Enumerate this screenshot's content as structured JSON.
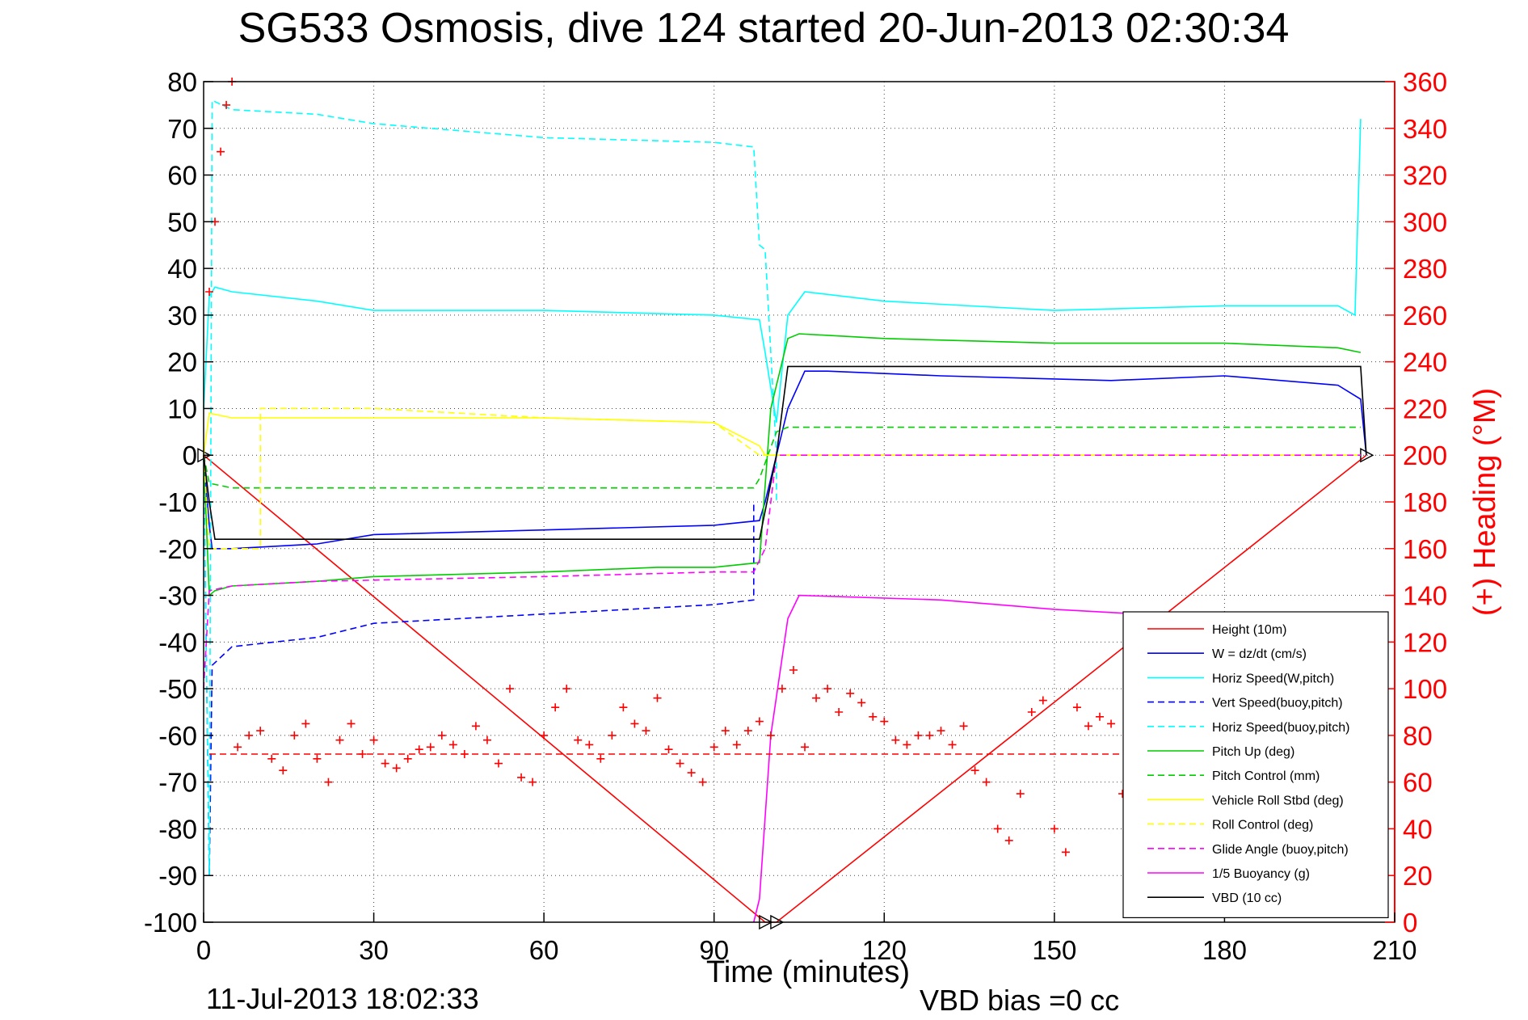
{
  "chart_data": {
    "type": "line",
    "title": "SG533 Osmosis, dive 124 started 20-Jun-2013 02:30:34",
    "xlabel": "Time (minutes)",
    "ylabel_right": "(+) Heading (°M)",
    "xlim": [
      0,
      210
    ],
    "ylim": [
      -100,
      80
    ],
    "ylim_right": [
      0,
      360
    ],
    "x_ticks": [
      0,
      30,
      60,
      90,
      120,
      150,
      180,
      210
    ],
    "y_ticks": [
      80,
      70,
      60,
      50,
      40,
      30,
      20,
      10,
      0,
      -10,
      -20,
      -30,
      -40,
      -50,
      -60,
      -70,
      -80,
      -90,
      -100
    ],
    "y_right_ticks": [
      360,
      340,
      320,
      300,
      280,
      260,
      240,
      220,
      200,
      180,
      160,
      140,
      120,
      100,
      80,
      60,
      40,
      20,
      0
    ],
    "grid": true,
    "legend_position": "bottom-right",
    "footer_left": "11-Jul-2013 18:02:33",
    "footer_right": "VBD bias =0 cc",
    "series": [
      {
        "name": "Height (10m)",
        "color": "#ff0000",
        "style": "solid",
        "marker": "triangle",
        "x": [
          0,
          99,
          101,
          205
        ],
        "y": [
          0,
          -100,
          -100,
          0
        ]
      },
      {
        "name": "W = dz/dt (cm/s)",
        "color": "#0000ff",
        "style": "solid",
        "x": [
          0,
          1,
          1.5,
          5,
          20,
          30,
          60,
          90,
          98,
          99,
          103,
          106,
          110,
          130,
          160,
          180,
          200,
          204,
          205
        ],
        "y": [
          0,
          -15,
          -20,
          -20,
          -19,
          -17,
          -16,
          -15,
          -14,
          -10,
          10,
          18,
          18,
          17,
          16,
          17,
          15,
          12,
          0
        ]
      },
      {
        "name": "Horiz Speed(W,pitch)",
        "color": "#00ffff",
        "style": "solid",
        "x": [
          0,
          1,
          2,
          5,
          20,
          30,
          60,
          90,
          98,
          99,
          101,
          103,
          106,
          120,
          150,
          180,
          200,
          203,
          204
        ],
        "y": [
          10,
          34,
          36,
          35,
          33,
          31,
          31,
          30,
          29,
          22,
          7,
          30,
          35,
          33,
          31,
          32,
          32,
          30,
          72
        ]
      },
      {
        "name": "Vert Speed(buoy,pitch)",
        "color": "#0000ff",
        "style": "dashed",
        "x": [
          0,
          1,
          1.5,
          5,
          20,
          30,
          60,
          90,
          97,
          97
        ],
        "y": [
          0,
          -90,
          -45,
          -41,
          -39,
          -36,
          -34,
          -32,
          -31,
          -10
        ]
      },
      {
        "name": "Horiz Speed(buoy,pitch)",
        "color": "#00ffff",
        "style": "dashed",
        "x": [
          0,
          1,
          1.5,
          5,
          20,
          30,
          60,
          90,
          97,
          98,
          99,
          101,
          101
        ],
        "y": [
          0,
          -90,
          76,
          74,
          73,
          71,
          68,
          67,
          66,
          45,
          44,
          0,
          -10
        ]
      },
      {
        "name": "Pitch Up (deg)",
        "color": "#00cc00",
        "style": "solid",
        "x": [
          0,
          1,
          2,
          5,
          20,
          30,
          60,
          80,
          90,
          98,
          100,
          103,
          105,
          120,
          150,
          180,
          200,
          204
        ],
        "y": [
          0,
          -30,
          -29,
          -28,
          -27,
          -26,
          -25,
          -24,
          -24,
          -23,
          10,
          25,
          26,
          25,
          24,
          24,
          23,
          22
        ]
      },
      {
        "name": "Pitch Control (mm)",
        "color": "#00cc00",
        "style": "dashed",
        "x": [
          0,
          1,
          5,
          20,
          60,
          90,
          97,
          98,
          101,
          103,
          120,
          150,
          180,
          204
        ],
        "y": [
          0,
          -6,
          -7,
          -7,
          -7,
          -7,
          -7,
          -5,
          5,
          6,
          6,
          6,
          6,
          6
        ]
      },
      {
        "name": "Vehicle Roll Stbd (deg)",
        "color": "#ffff00",
        "style": "solid",
        "x": [
          0,
          1,
          5,
          20,
          60,
          90,
          98,
          99,
          102,
          130,
          170,
          204
        ],
        "y": [
          0,
          9,
          8,
          8,
          8,
          7,
          2,
          0,
          0,
          0,
          0,
          0
        ]
      },
      {
        "name": "Roll Control (deg)",
        "color": "#ffff00",
        "style": "dashed",
        "x": [
          0,
          1,
          10,
          10,
          30,
          60,
          90,
          98,
          100,
          130,
          170,
          204
        ],
        "y": [
          0,
          -20,
          -20,
          10,
          10,
          8,
          7,
          0,
          0,
          0,
          0,
          0
        ]
      },
      {
        "name": "Glide Angle (buoy,pitch)",
        "color": "#ff00ff",
        "style": "dashed",
        "x": [
          0,
          1,
          5,
          20,
          60,
          90,
          97,
          99,
          101,
          150,
          204
        ],
        "y": [
          -50,
          -29,
          -28,
          -27,
          -26,
          -25,
          -25,
          -20,
          0,
          0,
          0
        ]
      },
      {
        "name": "1/5 Buoyancy (g)",
        "color": "#ff00ff",
        "style": "solid",
        "x": [
          97,
          98,
          100,
          103,
          105,
          130,
          150,
          165,
          170
        ],
        "y": [
          -100,
          -95,
          -60,
          -35,
          -30,
          -31,
          -33,
          -34,
          -35
        ]
      },
      {
        "name": "VBD (10 cc)",
        "color": "#000000",
        "style": "solid",
        "x": [
          0,
          1,
          2,
          97,
          98,
          101,
          103,
          204,
          205
        ],
        "y": [
          0,
          -10,
          -18,
          -18,
          -18,
          0,
          19,
          19,
          0
        ]
      }
    ],
    "heading_series": {
      "name": "(+) Heading",
      "color": "#ff0000",
      "marker": "plus",
      "axis": "right",
      "reference_line": 72,
      "x": [
        1,
        2,
        3,
        4,
        5,
        6,
        8,
        10,
        12,
        14,
        16,
        18,
        20,
        22,
        24,
        26,
        28,
        30,
        32,
        34,
        36,
        38,
        40,
        42,
        44,
        46,
        48,
        50,
        52,
        54,
        56,
        58,
        60,
        62,
        64,
        66,
        68,
        70,
        72,
        74,
        76,
        78,
        80,
        82,
        84,
        86,
        88,
        90,
        92,
        94,
        96,
        98,
        100,
        102,
        104,
        106,
        108,
        110,
        112,
        114,
        116,
        118,
        120,
        122,
        124,
        126,
        128,
        130,
        132,
        134,
        136,
        138,
        140,
        142,
        144,
        146,
        148,
        150,
        152,
        154,
        156,
        158,
        160,
        162,
        164,
        166,
        168,
        170,
        172,
        174,
        176,
        178,
        180,
        182,
        184,
        186,
        188,
        190,
        192,
        194,
        196,
        198,
        200,
        202,
        204
      ],
      "y": [
        270,
        300,
        330,
        350,
        360,
        75,
        80,
        82,
        70,
        65,
        80,
        85,
        70,
        60,
        78,
        85,
        72,
        78,
        68,
        66,
        70,
        74,
        75,
        80,
        76,
        72,
        84,
        78,
        68,
        100,
        62,
        60,
        80,
        92,
        100,
        78,
        76,
        70,
        80,
        92,
        85,
        82,
        96,
        74,
        68,
        64,
        60,
        75,
        82,
        76,
        82,
        86,
        80,
        100,
        108,
        75,
        96,
        100,
        90,
        98,
        94,
        88,
        86,
        78,
        76,
        80,
        80,
        82,
        76,
        84,
        65,
        60,
        40,
        35,
        55,
        90,
        95,
        40,
        30,
        92,
        84,
        88,
        85,
        55,
        40,
        30,
        70,
        30,
        22,
        85,
        90,
        76,
        65,
        80,
        40,
        30,
        80,
        25,
        20,
        78,
        96,
        70,
        50,
        80,
        68
      ]
    }
  }
}
